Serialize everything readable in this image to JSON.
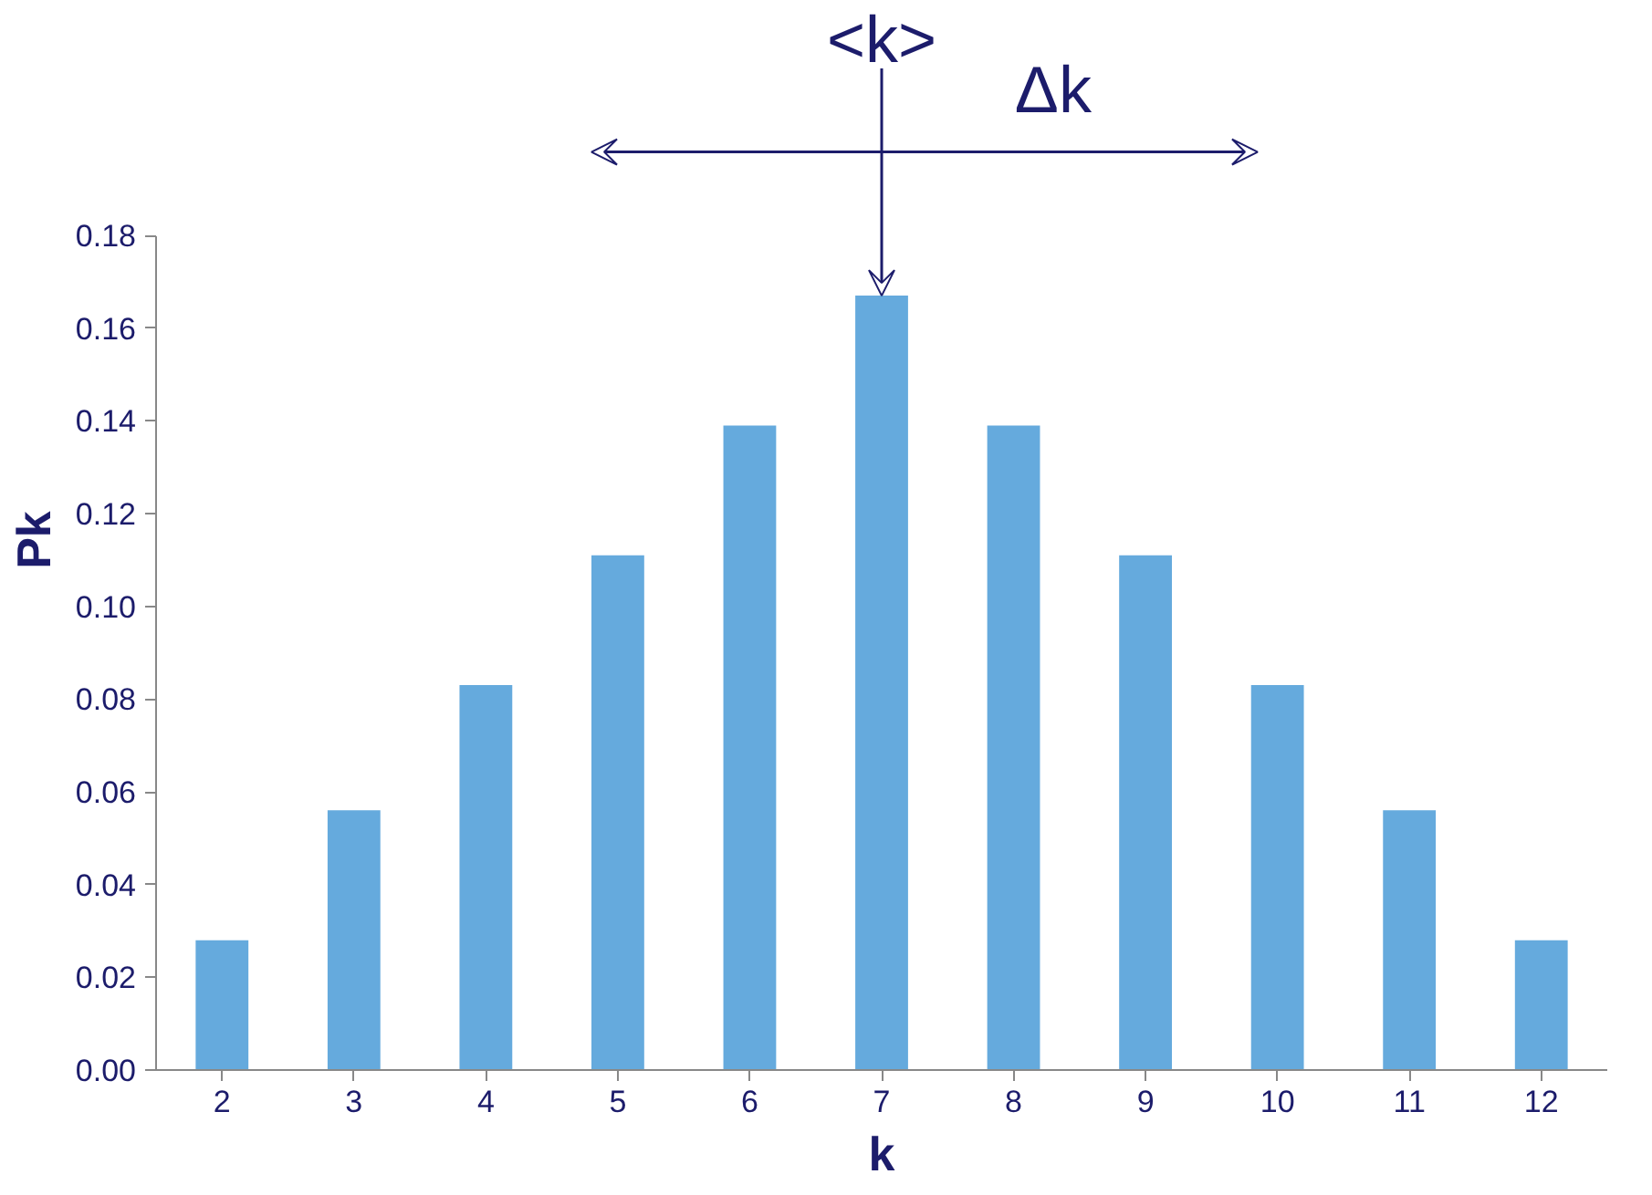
{
  "chart_data": {
    "type": "bar",
    "categories": [
      "2",
      "3",
      "4",
      "5",
      "6",
      "7",
      "8",
      "9",
      "10",
      "11",
      "12"
    ],
    "values": [
      0.028,
      0.056,
      0.083,
      0.111,
      0.139,
      0.167,
      0.139,
      0.111,
      0.083,
      0.056,
      0.028
    ],
    "color": "#65aadd",
    "xlabel": "k",
    "ylabel": "Pk",
    "ylim": [
      0,
      0.18
    ],
    "yticks": [
      {
        "value": 0,
        "label": "0.00"
      },
      {
        "value": 0.02,
        "label": "0.02"
      },
      {
        "value": 0.04,
        "label": "0.04"
      },
      {
        "value": 0.06,
        "label": "0.06"
      },
      {
        "value": 0.08,
        "label": "0.08"
      },
      {
        "value": 0.1,
        "label": "0.10"
      },
      {
        "value": 0.12,
        "label": "0.12"
      },
      {
        "value": 0.14,
        "label": "0.14"
      },
      {
        "value": 0.16,
        "label": "0.16"
      },
      {
        "value": 0.18,
        "label": "0.18"
      }
    ],
    "grid": false,
    "annotations": [
      {
        "text": "<k>",
        "x": "7",
        "y": 0.167
      },
      "Δk"
    ]
  }
}
